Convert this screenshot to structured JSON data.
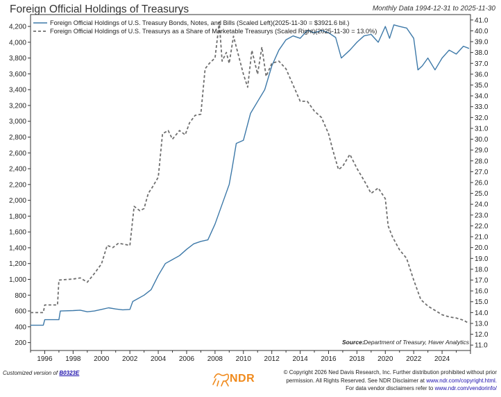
{
  "header": {
    "title": "Foreign Official Holdings of Treasurys",
    "subtitle": "Monthly Data 1994-12-31 to 2025-11-30"
  },
  "footer": {
    "customized_prefix": "Customized version of",
    "customized_link": "B0323E",
    "logo_text": "NDR",
    "copyright_line1": "© Copyright 2026 Ned Davis Research, Inc. Further distribution prohibited without prior",
    "copyright_line2_pre": "permission. All Rights Reserved. See NDR Disclaimer at",
    "copyright_link1": "www.ndr.com/copyright.html.",
    "copyright_line3_pre": "For data vendor disclaimers refer to",
    "copyright_link2": "www.ndr.com/vendorinfo/"
  },
  "colors": {
    "holdings_line": "#3c78a8",
    "share_line": "#6e6e6e",
    "logo": "#f08a1c"
  },
  "chart_data": {
    "type": "line",
    "x_range": [
      1995.0,
      2026.0
    ],
    "x_ticks": [
      "1996",
      "1998",
      "2000",
      "2002",
      "2004",
      "2006",
      "2008",
      "2010",
      "2012",
      "2014",
      "2016",
      "2018",
      "2020",
      "2022",
      "2024"
    ],
    "x_tick_years": [
      1996,
      1998,
      2000,
      2002,
      2004,
      2006,
      2008,
      2010,
      2012,
      2014,
      2016,
      2018,
      2020,
      2022,
      2024
    ],
    "left_axis": {
      "ylim": [
        100,
        4350
      ],
      "ticks": [
        "200",
        "400",
        "600",
        "800",
        "1,000",
        "1,200",
        "1,400",
        "1,600",
        "1,800",
        "2,000",
        "2,200",
        "2,400",
        "2,600",
        "2,800",
        "3,000",
        "3,200",
        "3,400",
        "3,600",
        "3,800",
        "4,000",
        "4,200"
      ],
      "tick_values": [
        200,
        400,
        600,
        800,
        1000,
        1200,
        1400,
        1600,
        1800,
        2000,
        2200,
        2400,
        2600,
        2800,
        3000,
        3200,
        3400,
        3600,
        3800,
        4000,
        4200
      ]
    },
    "right_axis": {
      "ylim": [
        10.5,
        41.5
      ],
      "ticks": [
        "11.0",
        "12.0",
        "13.0",
        "14.0",
        "15.0",
        "16.0",
        "17.0",
        "18.0",
        "19.0",
        "20.0",
        "21.0",
        "22.0",
        "23.0",
        "24.0",
        "25.0",
        "26.0",
        "27.0",
        "28.0",
        "29.0",
        "30.0",
        "31.0",
        "32.0",
        "33.0",
        "34.0",
        "35.0",
        "36.0",
        "37.0",
        "38.0",
        "39.0",
        "40.0",
        "41.0"
      ],
      "tick_values": [
        11,
        12,
        13,
        14,
        15,
        16,
        17,
        18,
        19,
        20,
        21,
        22,
        23,
        24,
        25,
        26,
        27,
        28,
        29,
        30,
        31,
        32,
        33,
        34,
        35,
        36,
        37,
        38,
        39,
        40,
        41
      ]
    },
    "series": [
      {
        "name": "Foreign Official Holdings of U.S. Treasury Bonds, Notes, and Bills (Scaled Left)(2025-11-30 = $3921.6 bil.)",
        "axis": "left",
        "style": "solid",
        "x": [
          1995.0,
          1995.9,
          1996.0,
          1997.0,
          1997.1,
          1998.0,
          1998.5,
          1999.0,
          1999.5,
          2000.0,
          2000.5,
          2001.0,
          2001.5,
          2002.0,
          2002.2,
          2002.5,
          2003.0,
          2003.5,
          2004.0,
          2004.5,
          2005.0,
          2005.5,
          2006.0,
          2006.5,
          2007.0,
          2007.5,
          2008.0,
          2008.5,
          2009.0,
          2009.2,
          2009.5,
          2010.0,
          2010.5,
          2011.0,
          2011.5,
          2012.0,
          2012.5,
          2013.0,
          2013.5,
          2014.0,
          2014.5,
          2015.0,
          2015.5,
          2016.0,
          2016.5,
          2016.9,
          2017.5,
          2018.0,
          2018.5,
          2019.0,
          2019.5,
          2020.0,
          2020.3,
          2020.6,
          2021.0,
          2021.5,
          2022.0,
          2022.3,
          2022.6,
          2023.0,
          2023.5,
          2024.0,
          2024.5,
          2025.0,
          2025.5,
          2025.9
        ],
        "y": [
          420,
          420,
          490,
          490,
          600,
          605,
          610,
          590,
          600,
          620,
          640,
          625,
          615,
          620,
          720,
          750,
          800,
          870,
          1050,
          1200,
          1250,
          1300,
          1380,
          1450,
          1480,
          1500,
          1700,
          1950,
          2200,
          2400,
          2720,
          2760,
          3100,
          3250,
          3400,
          3700,
          3900,
          4030,
          4080,
          4050,
          4150,
          4120,
          4150,
          4120,
          4060,
          3800,
          3900,
          4000,
          4080,
          4100,
          4000,
          4200,
          4050,
          4220,
          4200,
          4180,
          4050,
          3650,
          3700,
          3800,
          3650,
          3800,
          3900,
          3850,
          3950,
          3921.6
        ]
      },
      {
        "name": "Foreign Official Holdings of U.S. Treasurys as a Share of Marketable Treasurys (Scaled Right)(2025-11-30 = 13.0%)",
        "axis": "right",
        "style": "dashed",
        "x": [
          1995.0,
          1995.9,
          1996.0,
          1996.9,
          1997.0,
          1998.0,
          1998.5,
          1999.0,
          1999.5,
          2000.0,
          2000.4,
          2000.8,
          2001.2,
          2001.6,
          2002.0,
          2002.3,
          2002.7,
          2003.0,
          2003.3,
          2003.6,
          2004.0,
          2004.3,
          2004.7,
          2005.0,
          2005.5,
          2005.9,
          2006.2,
          2006.6,
          2007.0,
          2007.3,
          2007.6,
          2008.0,
          2008.3,
          2008.5,
          2008.8,
          2009.0,
          2009.3,
          2009.6,
          2010.0,
          2010.3,
          2010.6,
          2011.0,
          2011.3,
          2011.6,
          2012.0,
          2012.5,
          2013.0,
          2013.5,
          2014.0,
          2014.5,
          2015.0,
          2015.5,
          2016.0,
          2016.3,
          2016.7,
          2017.0,
          2017.5,
          2018.0,
          2018.5,
          2019.0,
          2019.5,
          2020.0,
          2020.2,
          2020.5,
          2021.0,
          2021.5,
          2022.0,
          2022.5,
          2023.0,
          2023.5,
          2024.0,
          2024.5,
          2025.0,
          2025.5,
          2025.9
        ],
        "y": [
          14.0,
          14.0,
          14.7,
          14.7,
          17.0,
          17.1,
          17.2,
          16.8,
          17.6,
          18.5,
          20.2,
          20.0,
          20.4,
          20.3,
          20.2,
          23.8,
          23.4,
          23.6,
          25.0,
          25.6,
          26.5,
          30.5,
          30.8,
          30.0,
          30.8,
          30.4,
          31.5,
          32.2,
          32.3,
          36.5,
          37.0,
          37.5,
          40.8,
          37.2,
          38.0,
          37.0,
          39.5,
          38.0,
          36.0,
          34.8,
          38.2,
          36.0,
          38.5,
          35.8,
          37.0,
          37.2,
          36.5,
          35.0,
          33.5,
          33.5,
          32.6,
          32.0,
          30.5,
          29.0,
          27.2,
          27.5,
          28.6,
          27.3,
          26.2,
          25.0,
          25.5,
          24.5,
          22.0,
          21.0,
          19.8,
          19.0,
          17.0,
          15.2,
          14.6,
          14.2,
          13.8,
          13.6,
          13.5,
          13.3,
          13.0
        ]
      }
    ]
  },
  "annotations": {
    "source_label": "Source:",
    "source_text": "Department of Treasury, Haver Analytics"
  }
}
